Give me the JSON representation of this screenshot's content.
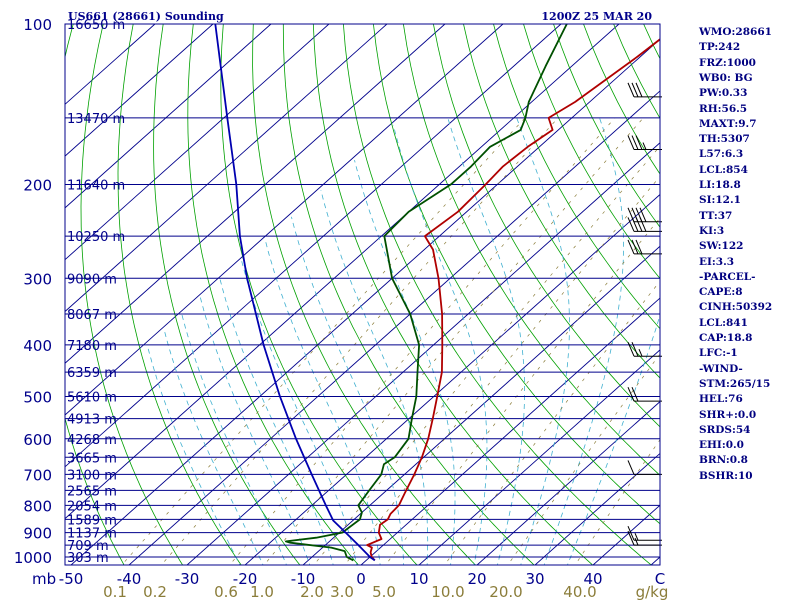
{
  "header": {
    "station": "US661 (28661) Sounding",
    "time": "1200Z 25 MAR 20"
  },
  "stats": [
    "WMO:28661",
    "TP:242",
    "FRZ:1000",
    "WB0: BG",
    "PW:0.33",
    "RH:56.5",
    "MAXT:9.7",
    "TH:5307",
    "L57:6.3",
    "LCL:854",
    "LI:18.8",
    "SI:12.1",
    "TT:37",
    "KI:3",
    "SW:122",
    "EI:3.3",
    "-PARCEL-",
    "CAPE:8",
    "CINH:50392",
    "LCL:841",
    "CAP:18.8",
    "LFC:-1",
    "-WIND-",
    "STM:265/15",
    "HEL:76",
    "SHR+:0.0",
    "SRDS:54",
    "EHI:0.0",
    "BRN:0.8",
    "BSHR:10"
  ],
  "colors": {
    "background": "#ffffff",
    "isobar": "#00008b",
    "isotherm": "#00008b",
    "dry_adiabat": "#00a000",
    "moist_adiabat": "#40b0d0",
    "mixing_ratio": "#8b7d3a",
    "temperature": "#b00000",
    "dewpoint": "#005000",
    "parcel": "#0000b0",
    "wind": "#000000",
    "axis_text": "#00008b",
    "mixing_text": "#8b7d3a"
  },
  "chart_data": {
    "type": "line",
    "subtype": "skew-T log-P sounding",
    "pressure_axis": {
      "label": "mb",
      "ticks": [
        100,
        200,
        300,
        400,
        500,
        600,
        700,
        800,
        900,
        1000
      ],
      "scale": "log"
    },
    "temperature_axis": {
      "ticks": [
        -50,
        -40,
        -30,
        -20,
        -10,
        0,
        10,
        20,
        30,
        40
      ],
      "tick_labels": [
        "-50",
        "-40",
        "-30",
        "-20",
        "-10",
        "0",
        "10",
        "20",
        "30",
        "40"
      ],
      "unit_label": "C"
    },
    "mixing_ratio_labels": [
      "0.1",
      "0.2",
      "0.6",
      "1.0",
      "2.0",
      "3.0",
      "5.0",
      "10.0",
      "20.0",
      "40.0"
    ],
    "mixing_ratio_unit": "g/kg",
    "heights": [
      {
        "p": 100,
        "label": "16650 m"
      },
      {
        "p": 150,
        "label": "13470 m"
      },
      {
        "p": 200,
        "label": "11640 m"
      },
      {
        "p": 250,
        "label": "10250 m"
      },
      {
        "p": 300,
        "label": "9090 m"
      },
      {
        "p": 350,
        "label": "8067 m"
      },
      {
        "p": 400,
        "label": "7180 m"
      },
      {
        "p": 450,
        "label": "6359 m"
      },
      {
        "p": 500,
        "label": "5610 m"
      },
      {
        "p": 550,
        "label": "4913 m"
      },
      {
        "p": 600,
        "label": "4268 m"
      },
      {
        "p": 650,
        "label": "3665 m"
      },
      {
        "p": 700,
        "label": "3100 m"
      },
      {
        "p": 750,
        "label": "2565 m"
      },
      {
        "p": 800,
        "label": "2054 m"
      },
      {
        "p": 850,
        "label": "1589 m"
      },
      {
        "p": 900,
        "label": "1137 m"
      },
      {
        "p": 950,
        "label": "709 m"
      },
      {
        "p": 1000,
        "label": "303 m"
      }
    ],
    "series": [
      {
        "name": "temperature",
        "points": [
          [
            1015,
            1.5
          ],
          [
            1000,
            0.3
          ],
          [
            980,
            -0.8
          ],
          [
            960,
            -1.5
          ],
          [
            950,
            -2.8
          ],
          [
            925,
            -1.5
          ],
          [
            900,
            -3.2
          ],
          [
            870,
            -4.5
          ],
          [
            850,
            -4.2
          ],
          [
            830,
            -4.8
          ],
          [
            800,
            -5.0
          ],
          [
            760,
            -6.3
          ],
          [
            700,
            -8.3
          ],
          [
            650,
            -10.3
          ],
          [
            600,
            -12.8
          ],
          [
            550,
            -15.9
          ],
          [
            500,
            -19.4
          ],
          [
            450,
            -23.3
          ],
          [
            400,
            -28.5
          ],
          [
            350,
            -34.5
          ],
          [
            300,
            -42.0
          ],
          [
            265,
            -48.5
          ],
          [
            250,
            -52.5
          ],
          [
            225,
            -51.5
          ],
          [
            200,
            -52.0
          ],
          [
            185,
            -52.5
          ],
          [
            170,
            -52.0
          ],
          [
            158,
            -51.0
          ],
          [
            150,
            -54.0
          ],
          [
            140,
            -52.5
          ],
          [
            115,
            -50.5
          ],
          [
            100,
            -49.5
          ]
        ]
      },
      {
        "name": "dewpoint",
        "points": [
          [
            1015,
            -2.2
          ],
          [
            1000,
            -4.0
          ],
          [
            975,
            -5.5
          ],
          [
            960,
            -8.5
          ],
          [
            940,
            -16.5
          ],
          [
            935,
            -17.5
          ],
          [
            920,
            -13.0
          ],
          [
            900,
            -9.5
          ],
          [
            850,
            -9.0
          ],
          [
            825,
            -10.0
          ],
          [
            800,
            -12.0
          ],
          [
            750,
            -13.0
          ],
          [
            700,
            -14.0
          ],
          [
            670,
            -15.5
          ],
          [
            650,
            -15.0
          ],
          [
            600,
            -16.2
          ],
          [
            550,
            -19.5
          ],
          [
            500,
            -23.0
          ],
          [
            450,
            -27.5
          ],
          [
            400,
            -32.5
          ],
          [
            350,
            -40.0
          ],
          [
            300,
            -50.0
          ],
          [
            250,
            -59.5
          ],
          [
            225,
            -60.0
          ],
          [
            200,
            -58.0
          ],
          [
            185,
            -58.0
          ],
          [
            170,
            -58.5
          ],
          [
            158,
            -56.5
          ],
          [
            150,
            -58.0
          ],
          [
            140,
            -60.5
          ],
          [
            120,
            -64.5
          ],
          [
            100,
            -69.0
          ]
        ]
      },
      {
        "name": "parcel",
        "points": [
          [
            1015,
            1.5
          ],
          [
            1000,
            0.0
          ],
          [
            950,
            -4.3
          ],
          [
            900,
            -8.9
          ],
          [
            854,
            -13.4
          ],
          [
            800,
            -17.6
          ],
          [
            700,
            -26.0
          ],
          [
            600,
            -35.6
          ],
          [
            500,
            -46.5
          ],
          [
            400,
            -59.3
          ],
          [
            300,
            -75.0
          ],
          [
            250,
            -84.4
          ],
          [
            200,
            -95.0
          ],
          [
            150,
            -109.4
          ],
          [
            100,
            -129.6
          ]
        ]
      }
    ],
    "winds": [
      {
        "p": 137,
        "speed_kt": 30
      },
      {
        "p": 172,
        "speed_kt": 35
      },
      {
        "p": 235,
        "speed_kt": 40
      },
      {
        "p": 245,
        "speed_kt": 40
      },
      {
        "p": 270,
        "speed_kt": 30
      },
      {
        "p": 420,
        "speed_kt": 25
      },
      {
        "p": 510,
        "speed_kt": 20
      },
      {
        "p": 700,
        "speed_kt": 10
      },
      {
        "p": 930,
        "speed_kt": 15
      },
      {
        "p": 950,
        "speed_kt": 15
      }
    ]
  }
}
